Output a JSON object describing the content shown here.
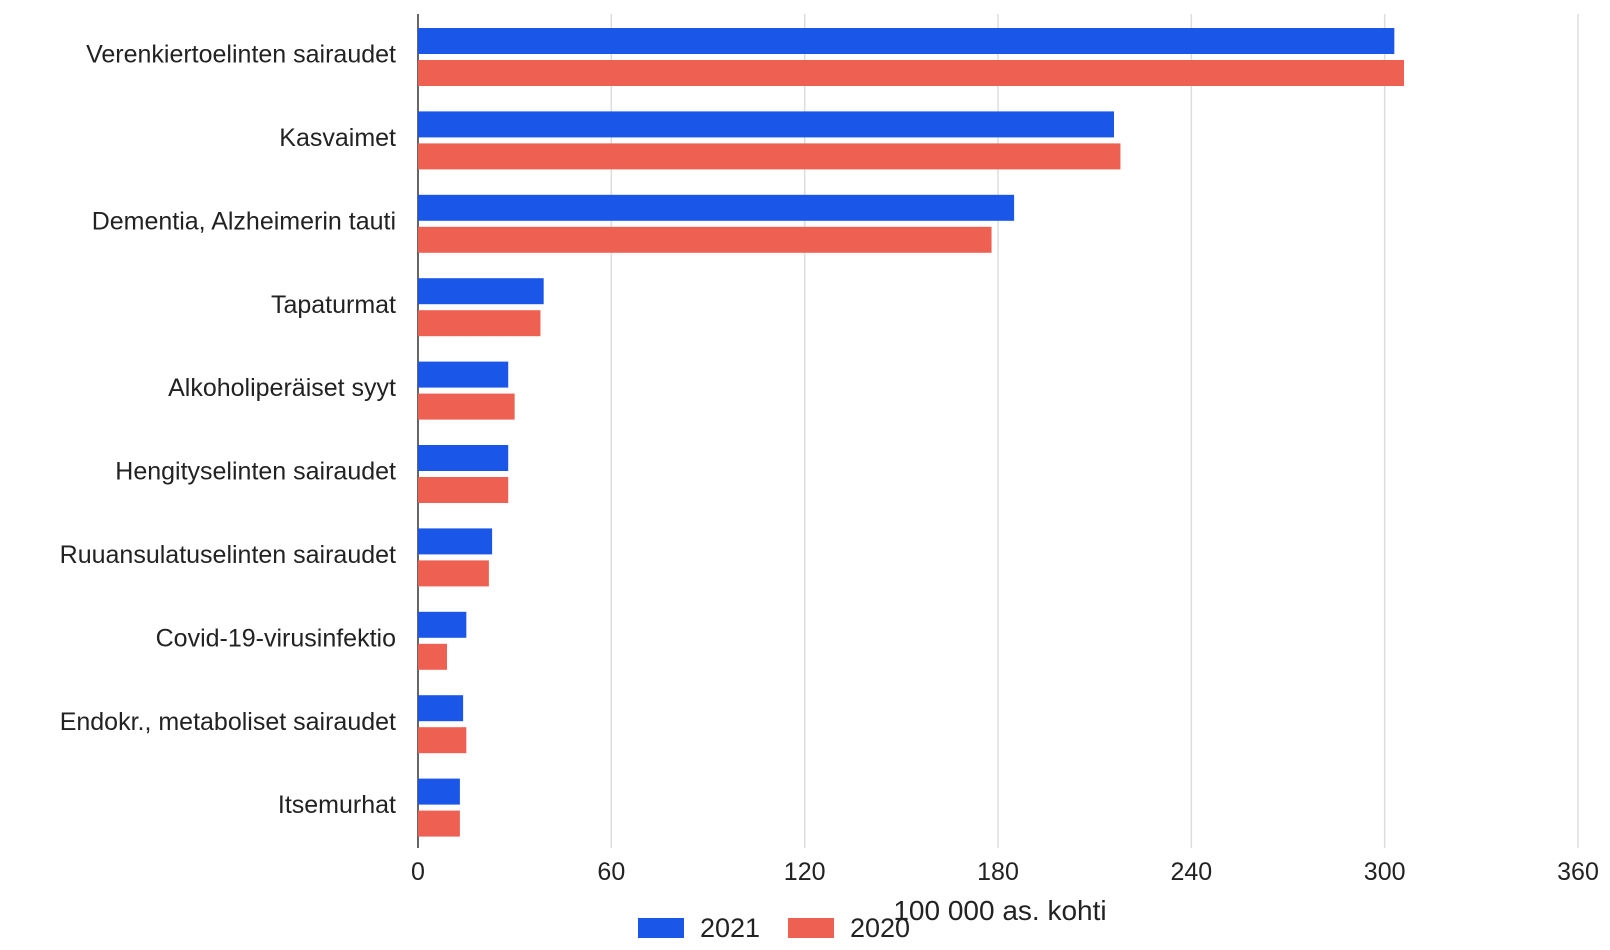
{
  "chart_data": {
    "type": "bar",
    "orientation": "horizontal",
    "categories": [
      "Verenkiertoelinten sairaudet",
      "Kasvaimet",
      "Dementia, Alzheimerin tauti",
      "Tapaturmat",
      "Alkoholiperäiset syyt",
      "Hengityselinten sairaudet",
      "Ruuansulatuselinten sairaudet",
      "Covid-19-virusinfektio",
      "Endokr., metaboliset sairaudet",
      "Itsemurhat"
    ],
    "series": [
      {
        "name": "2021",
        "color": "#1a56e8",
        "values": [
          303,
          216,
          185,
          39,
          28,
          28,
          23,
          15,
          14,
          13
        ]
      },
      {
        "name": "2020",
        "color": "#ee6152",
        "values": [
          306,
          218,
          178,
          38,
          30,
          28,
          22,
          9,
          15,
          13
        ]
      }
    ],
    "xlabel": "100 000 as. kohti",
    "xlim": [
      0,
      360
    ],
    "xticks": [
      0,
      60,
      120,
      180,
      240,
      300,
      360
    ],
    "grid": "vertical",
    "legend": "bottom"
  }
}
